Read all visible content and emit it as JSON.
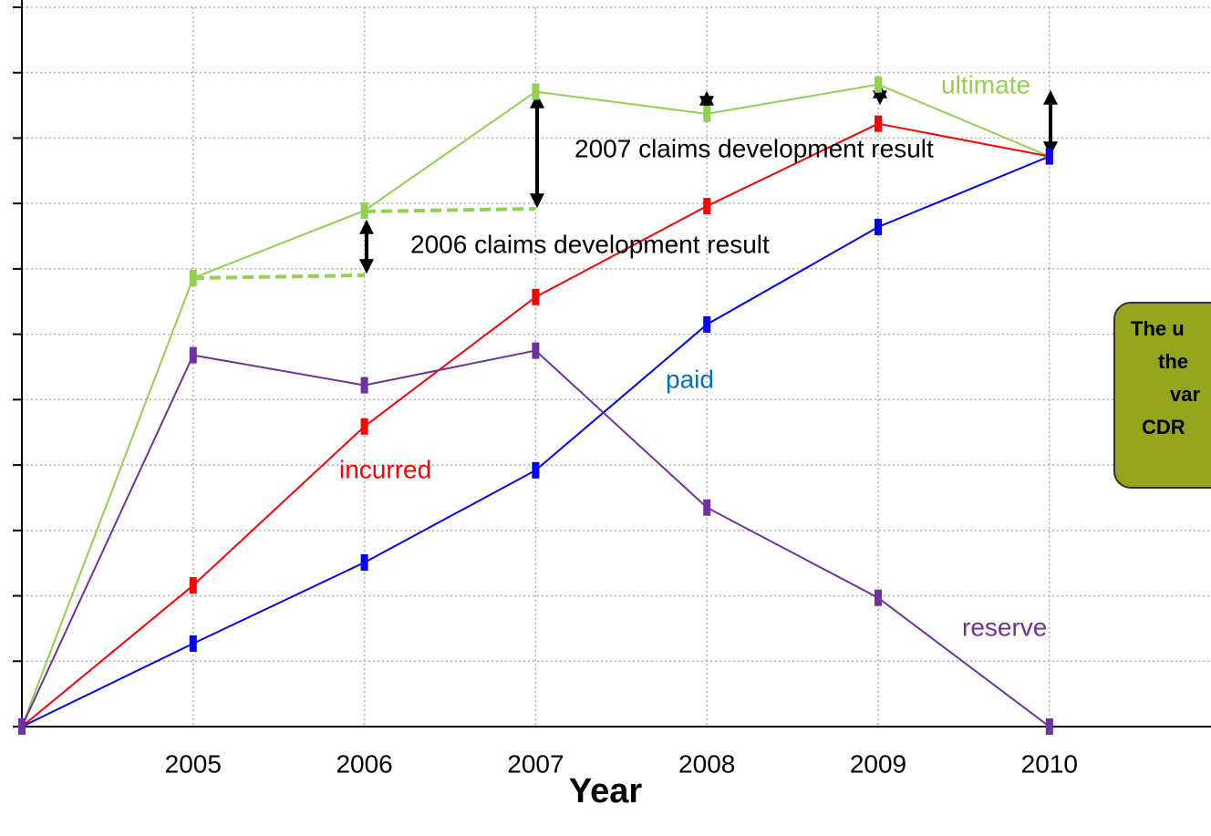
{
  "chart_data": {
    "type": "line",
    "categories": [
      null,
      "2005",
      "2006",
      "2007",
      "2008",
      "2009",
      "2010"
    ],
    "series": [
      {
        "name": "ultimate",
        "color": "#92d050",
        "values": [
          0,
          6.86,
          7.89,
          9.71,
          9.37,
          9.82,
          8.72
        ]
      },
      {
        "name": "incurred",
        "color": "#ff0000",
        "values": [
          0,
          2.16,
          4.59,
          6.57,
          7.96,
          9.22,
          8.72
        ]
      },
      {
        "name": "paid",
        "color": "#0000ff",
        "label_color": "#0070c0",
        "values": [
          0,
          1.27,
          2.51,
          3.92,
          6.15,
          7.64,
          8.72
        ]
      },
      {
        "name": "reserve",
        "color": "#7030a0",
        "values": [
          0,
          5.68,
          5.22,
          5.75,
          3.35,
          1.97,
          0
        ]
      }
    ],
    "ylim": [
      0,
      11
    ],
    "yticks": [
      0,
      1,
      2,
      3,
      4,
      5,
      6,
      7,
      8,
      9,
      10,
      11
    ],
    "grid": true,
    "xlabel": "Year",
    "annotations": [
      "2007 claims development result",
      "2006 claims development result"
    ],
    "note_box": [
      "The u",
      "the",
      "var",
      "CDR"
    ]
  }
}
